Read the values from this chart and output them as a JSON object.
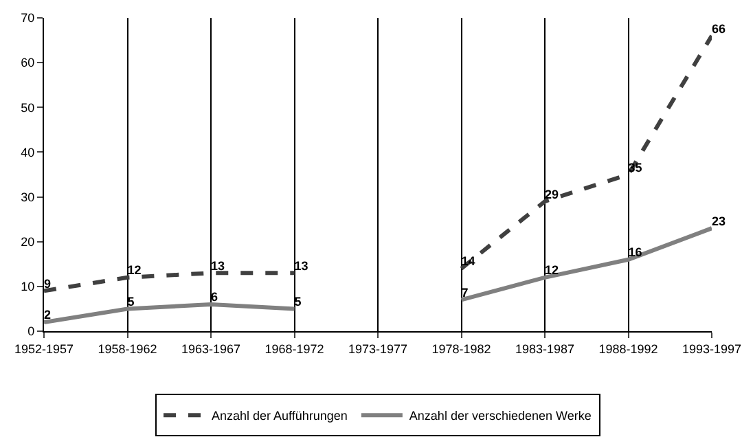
{
  "chart_data": {
    "type": "line",
    "categories": [
      "1952-1957",
      "1958-1962",
      "1963-1967",
      "1968-1972",
      "1973-1977",
      "1978-1982",
      "1983-1987",
      "1988-1992",
      "1993-1997"
    ],
    "series": [
      {
        "name": "Anzahl der Aufführungen",
        "color": "#404040",
        "line_style": "dashed",
        "values": [
          9,
          12,
          13,
          13,
          null,
          14,
          29,
          35,
          66
        ]
      },
      {
        "name": "Anzahl der verschiedenen Werke",
        "color": "#808080",
        "line_style": "solid",
        "values": [
          2,
          5,
          6,
          5,
          null,
          7,
          12,
          16,
          23
        ]
      }
    ],
    "ylim": [
      0,
      70
    ],
    "yticks": [
      0,
      10,
      20,
      30,
      40,
      50,
      60,
      70
    ],
    "grid": "x",
    "legend": "bottom",
    "marker": "none",
    "data_labels": true
  }
}
